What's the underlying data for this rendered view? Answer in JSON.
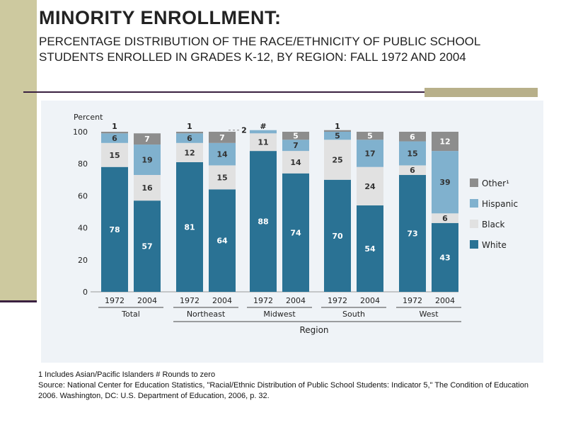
{
  "slide": {
    "title": "MINORITY ENROLLMENT:",
    "subtitle": "PERCENTAGE DISTRIBUTION OF THE RACE/ETHNICITY OF PUBLIC SCHOOL STUDENTS ENROLLED IN GRADES K-12, BY REGION: FALL 1972 AND 2004",
    "footnote": "1 Includes Asian/Pacific Islanders # Rounds to zero",
    "source": "Source: National Center for Education Statistics, \"Racial/Ethnic Distribution of Public School Students: Indicator 5,\" The Condition of Education 2006. Washington, DC: U.S. Department of Education, 2006, p. 32."
  },
  "chart_data": {
    "type": "bar",
    "stacked": true,
    "ylabel": "Percent",
    "xlabel": "Region",
    "ylim": [
      0,
      100
    ],
    "yticks": [
      0,
      20,
      40,
      60,
      80,
      100
    ],
    "groups": [
      "Total",
      "Northeast",
      "Midwest",
      "South",
      "West"
    ],
    "categories": [
      "1972",
      "2004",
      "1972",
      "2004",
      "1972",
      "2004",
      "1972",
      "2004",
      "1972",
      "2004"
    ],
    "zero_label": "#",
    "series": [
      {
        "name": "White",
        "color": "#2a7294",
        "values": [
          78,
          57,
          81,
          64,
          88,
          74,
          70,
          54,
          73,
          43
        ]
      },
      {
        "name": "Black",
        "color": "#e1e1e1",
        "values": [
          15,
          16,
          12,
          15,
          11,
          14,
          25,
          24,
          6,
          6
        ]
      },
      {
        "name": "Hispanic",
        "color": "#80b1ce",
        "values": [
          6,
          19,
          6,
          14,
          2,
          7,
          5,
          17,
          15,
          39
        ]
      },
      {
        "name": "Other",
        "legend": "Other¹",
        "color": "#8d8d8d",
        "values": [
          1,
          7,
          1,
          7,
          0,
          5,
          1,
          5,
          6,
          12
        ]
      }
    ],
    "legend_position": "right",
    "grid": false
  }
}
